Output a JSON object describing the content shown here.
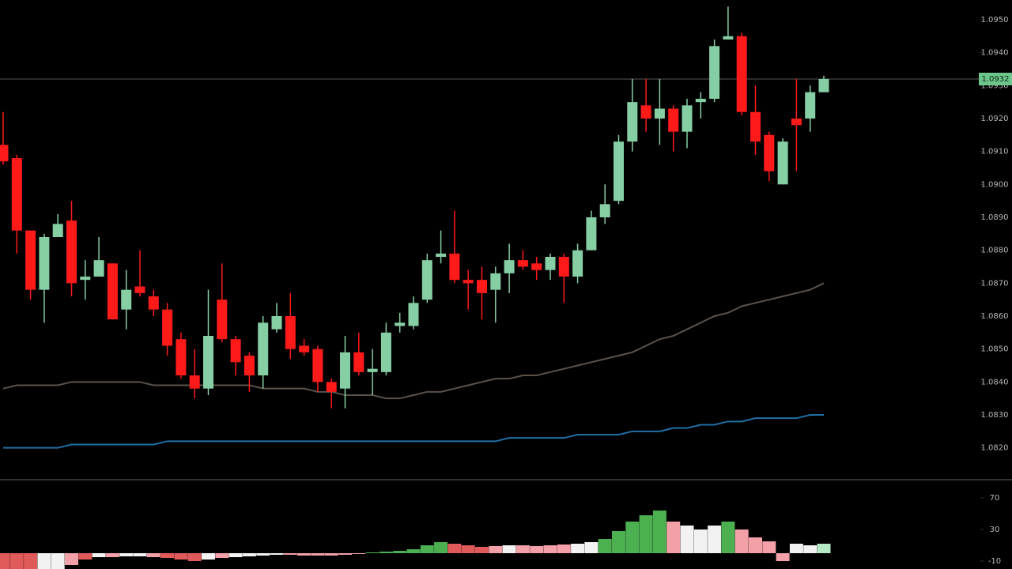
{
  "chart_data": [
    {
      "type": "candlestick",
      "up_color": "#86cfa4",
      "down_color": "#ff1a1a",
      "ylim": [
        1.0812,
        1.0956
      ],
      "yticks": [
        {
          "value": 1.095,
          "label": "1.0950"
        },
        {
          "value": 1.094,
          "label": "1.0940"
        },
        {
          "value": 1.093,
          "label": "1.0930"
        },
        {
          "value": 1.092,
          "label": "1.0920"
        },
        {
          "value": 1.091,
          "label": "1.0910"
        },
        {
          "value": 1.09,
          "label": "1.0900"
        },
        {
          "value": 1.089,
          "label": "1.0890"
        },
        {
          "value": 1.088,
          "label": "1.0880"
        },
        {
          "value": 1.087,
          "label": "1.0870"
        },
        {
          "value": 1.086,
          "label": "1.0860"
        },
        {
          "value": 1.085,
          "label": "1.0850"
        },
        {
          "value": 1.084,
          "label": "1.0840"
        },
        {
          "value": 1.083,
          "label": "1.0830"
        },
        {
          "value": 1.082,
          "label": "1.0820"
        }
      ],
      "last_price": 1.0932,
      "open": [
        1.0912,
        1.0908,
        1.0886,
        1.0868,
        1.0884,
        1.0889,
        1.0871,
        1.0872,
        1.0876,
        1.0862,
        1.0869,
        1.0866,
        1.0862,
        1.0853,
        1.0842,
        1.0838,
        1.0865,
        1.0853,
        1.0848,
        1.0842,
        1.0856,
        1.086,
        1.0851,
        1.085,
        1.084,
        1.0838,
        1.0849,
        1.0843,
        1.0843,
        1.0857,
        1.0857,
        1.0865,
        1.0878,
        1.0879,
        1.0871,
        1.0871,
        1.0868,
        1.0873,
        1.0877,
        1.0876,
        1.0874,
        1.0878,
        1.0872,
        1.088,
        1.089,
        1.0895,
        1.0913,
        1.0924,
        1.092,
        1.0923,
        1.0916,
        1.0925,
        1.0926,
        1.0944,
        1.0945,
        1.0922,
        1.0915,
        1.09,
        1.092,
        1.092,
        1.0928
      ],
      "high": [
        1.0922,
        1.0909,
        1.0886,
        1.0885,
        1.0891,
        1.0895,
        1.0877,
        1.0884,
        1.0876,
        1.0874,
        1.088,
        1.0868,
        1.0864,
        1.0855,
        1.085,
        1.0868,
        1.0876,
        1.0854,
        1.0849,
        1.086,
        1.0864,
        1.0867,
        1.0853,
        1.0851,
        1.0841,
        1.0854,
        1.0855,
        1.085,
        1.0858,
        1.0861,
        1.0866,
        1.0879,
        1.0886,
        1.0892,
        1.0874,
        1.0875,
        1.0875,
        1.0882,
        1.088,
        1.0878,
        1.0879,
        1.0879,
        1.0882,
        1.0892,
        1.09,
        1.0915,
        1.0932,
        1.0932,
        1.0932,
        1.0924,
        1.0926,
        1.0928,
        1.0944,
        1.0954,
        1.0946,
        1.093,
        1.0916,
        1.0914,
        1.0932,
        1.093,
        1.0933
      ],
      "low": [
        1.0906,
        1.0879,
        1.0865,
        1.0858,
        1.0884,
        1.0866,
        1.0865,
        1.0872,
        1.0859,
        1.0856,
        1.0866,
        1.086,
        1.0848,
        1.0841,
        1.0835,
        1.0836,
        1.0852,
        1.0842,
        1.0837,
        1.0838,
        1.0855,
        1.0847,
        1.0848,
        1.0837,
        1.0832,
        1.0832,
        1.0842,
        1.0836,
        1.0842,
        1.0855,
        1.0856,
        1.0864,
        1.0876,
        1.087,
        1.0862,
        1.0859,
        1.0858,
        1.0867,
        1.0874,
        1.0871,
        1.0871,
        1.0864,
        1.087,
        1.088,
        1.0888,
        1.0894,
        1.091,
        1.0916,
        1.0912,
        1.091,
        1.0911,
        1.092,
        1.0925,
        1.0944,
        1.0921,
        1.0909,
        1.0901,
        1.09,
        1.0904,
        1.0916,
        1.0928
      ],
      "close": [
        1.0907,
        1.0886,
        1.0868,
        1.0884,
        1.0888,
        1.087,
        1.0872,
        1.0877,
        1.0859,
        1.0868,
        1.0867,
        1.0862,
        1.0851,
        1.0842,
        1.0838,
        1.0854,
        1.0853,
        1.0846,
        1.0842,
        1.0858,
        1.086,
        1.085,
        1.0849,
        1.084,
        1.0837,
        1.0849,
        1.0843,
        1.0844,
        1.0855,
        1.0858,
        1.0864,
        1.0877,
        1.0879,
        1.0871,
        1.087,
        1.0867,
        1.0873,
        1.0877,
        1.0875,
        1.0874,
        1.0878,
        1.0872,
        1.088,
        1.089,
        1.0894,
        1.0913,
        1.0925,
        1.092,
        1.0923,
        1.0916,
        1.0924,
        1.0926,
        1.0942,
        1.0945,
        1.0922,
        1.0913,
        1.0904,
        1.0913,
        1.0918,
        1.0928,
        1.0932
      ],
      "series": [
        {
          "color": "#5c524a",
          "values": [
            1.0838,
            1.0839,
            1.0839,
            1.0839,
            1.0839,
            1.084,
            1.084,
            1.084,
            1.084,
            1.084,
            1.084,
            1.0839,
            1.0839,
            1.0839,
            1.0839,
            1.0839,
            1.0839,
            1.0839,
            1.0839,
            1.0838,
            1.0838,
            1.0838,
            1.0838,
            1.0837,
            1.0837,
            1.0836,
            1.0836,
            1.0836,
            1.0835,
            1.0835,
            1.0836,
            1.0837,
            1.0837,
            1.0838,
            1.0839,
            1.084,
            1.0841,
            1.0841,
            1.0842,
            1.0842,
            1.0843,
            1.0844,
            1.0845,
            1.0846,
            1.0847,
            1.0848,
            1.0849,
            1.0851,
            1.0853,
            1.0854,
            1.0856,
            1.0858,
            1.086,
            1.0861,
            1.0863,
            1.0864,
            1.0865,
            1.0866,
            1.0867,
            1.0868,
            1.087
          ]
        },
        {
          "color": "#1f6fa6",
          "values": [
            1.082,
            1.082,
            1.082,
            1.082,
            1.082,
            1.0821,
            1.0821,
            1.0821,
            1.0821,
            1.0821,
            1.0821,
            1.0821,
            1.0822,
            1.0822,
            1.0822,
            1.0822,
            1.0822,
            1.0822,
            1.0822,
            1.0822,
            1.0822,
            1.0822,
            1.0822,
            1.0822,
            1.0822,
            1.0822,
            1.0822,
            1.0822,
            1.0822,
            1.0822,
            1.0822,
            1.0822,
            1.0822,
            1.0822,
            1.0822,
            1.0822,
            1.0822,
            1.0823,
            1.0823,
            1.0823,
            1.0823,
            1.0823,
            1.0824,
            1.0824,
            1.0824,
            1.0824,
            1.0825,
            1.0825,
            1.0825,
            1.0826,
            1.0826,
            1.0827,
            1.0827,
            1.0828,
            1.0828,
            1.0829,
            1.0829,
            1.0829,
            1.0829,
            1.083,
            1.083
          ]
        }
      ]
    },
    {
      "type": "bar",
      "ylim": [
        -20,
        80
      ],
      "yticks": [
        70,
        30,
        -10
      ],
      "values": [
        -20,
        -20,
        -20,
        -20,
        -20,
        -15,
        -8,
        -5,
        -5,
        -4,
        -4,
        -5,
        -6,
        -8,
        -10,
        -8,
        -6,
        -5,
        -4,
        -3,
        -2,
        -2,
        -3,
        -3,
        -3,
        -2,
        -1,
        1,
        2,
        3,
        5,
        10,
        14,
        12,
        10,
        8,
        9,
        10,
        10,
        9,
        10,
        11,
        12,
        14,
        18,
        28,
        40,
        48,
        54,
        40,
        35,
        30,
        35,
        40,
        30,
        20,
        15,
        -10,
        12,
        10,
        12
      ],
      "colors": [
        "#e05a5a",
        "#e05a5a",
        "#e05a5a",
        "#f2f2f2",
        "#f2f2f2",
        "#f4a0a8",
        "#e05a5a",
        "#f2f2f2",
        "#f4a0a8",
        "#f2f2f2",
        "#f2f2f2",
        "#f4a0a8",
        "#e05a5a",
        "#e05a5a",
        "#e05a5a",
        "#f2f2f2",
        "#f4a0a8",
        "#f2f2f2",
        "#f2f2f2",
        "#f2f2f2",
        "#f2f2f2",
        "#f4a0a8",
        "#f4a0a8",
        "#f4a0a8",
        "#f4a0a8",
        "#f4a0a8",
        "#f4a0a8",
        "#4caf50",
        "#4caf50",
        "#4caf50",
        "#4caf50",
        "#4caf50",
        "#4caf50",
        "#e05a5a",
        "#e05a5a",
        "#e05a5a",
        "#f4a0a8",
        "#f2f2f2",
        "#f4a0a8",
        "#f4a0a8",
        "#f4a0a8",
        "#f4a0a8",
        "#f2f2f2",
        "#f2f2f2",
        "#4caf50",
        "#4caf50",
        "#4caf50",
        "#4caf50",
        "#4caf50",
        "#f4a0a8",
        "#f2f2f2",
        "#f2f2f2",
        "#f2f2f2",
        "#4caf50",
        "#f4a0a8",
        "#f4a0a8",
        "#f4a0a8",
        "#f4a0a8",
        "#f2f2f2",
        "#f2f2f2",
        "#b5e8c4"
      ]
    }
  ]
}
